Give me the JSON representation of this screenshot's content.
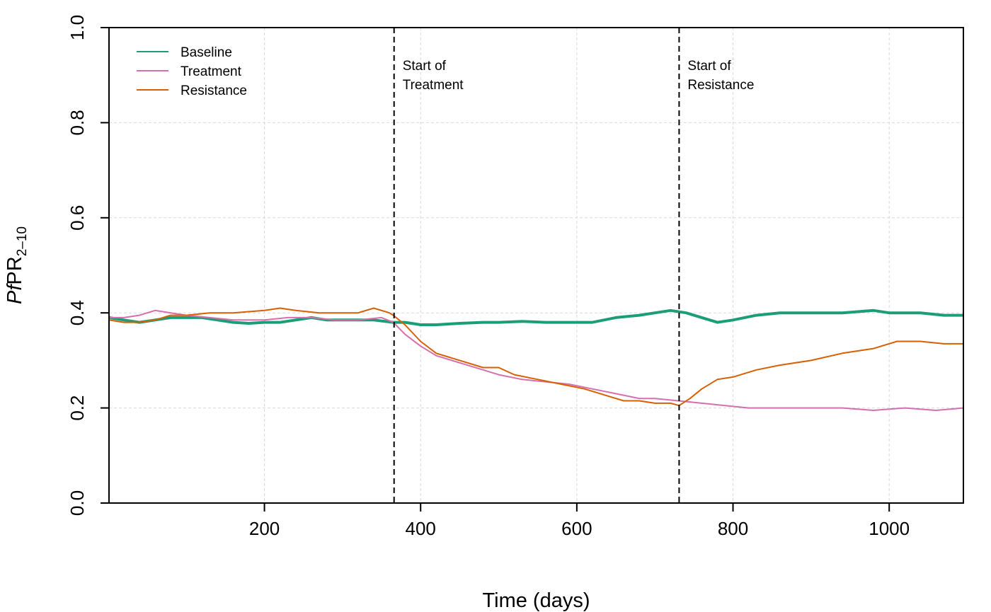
{
  "chart_data": {
    "type": "line",
    "title": "",
    "xlabel": "Time (days)",
    "ylabel": {
      "italic": "Pf",
      "main": "PR",
      "sub": "2–10"
    },
    "xlim": [
      1,
      1095
    ],
    "ylim": [
      0,
      1
    ],
    "xticks": [
      200,
      400,
      600,
      800,
      1000
    ],
    "xtick_labels": [
      "200",
      "400",
      "600",
      "800",
      "1000"
    ],
    "yticks": [
      0.0,
      0.2,
      0.4,
      0.6,
      0.8,
      1.0
    ],
    "ytick_labels": [
      "0.0",
      "0.2",
      "0.4",
      "0.6",
      "0.8",
      "1.0"
    ],
    "grid": true,
    "legend_position": "top-left",
    "series": [
      {
        "name": "Baseline",
        "color": "#1b9e77",
        "x": [
          1,
          20,
          40,
          60,
          80,
          100,
          120,
          140,
          160,
          180,
          200,
          220,
          240,
          260,
          280,
          300,
          320,
          340,
          365,
          380,
          400,
          420,
          450,
          480,
          500,
          530,
          560,
          590,
          620,
          650,
          680,
          700,
          720,
          740,
          760,
          780,
          800,
          830,
          860,
          900,
          940,
          980,
          1000,
          1040,
          1070,
          1095
        ],
        "values": [
          0.39,
          0.385,
          0.38,
          0.385,
          0.39,
          0.39,
          0.39,
          0.385,
          0.38,
          0.378,
          0.38,
          0.38,
          0.385,
          0.39,
          0.385,
          0.385,
          0.385,
          0.385,
          0.38,
          0.38,
          0.375,
          0.375,
          0.378,
          0.38,
          0.38,
          0.382,
          0.38,
          0.38,
          0.38,
          0.39,
          0.395,
          0.4,
          0.405,
          0.4,
          0.39,
          0.38,
          0.385,
          0.395,
          0.4,
          0.4,
          0.4,
          0.405,
          0.4,
          0.4,
          0.395,
          0.395
        ]
      },
      {
        "name": "Treatment",
        "color": "#d66fac",
        "x": [
          1,
          20,
          40,
          60,
          80,
          100,
          130,
          160,
          200,
          230,
          260,
          290,
          320,
          350,
          365,
          380,
          400,
          420,
          450,
          480,
          500,
          530,
          560,
          590,
          620,
          650,
          680,
          700,
          730,
          760,
          790,
          820,
          860,
          900,
          940,
          980,
          1020,
          1060,
          1095
        ],
        "values": [
          0.39,
          0.39,
          0.395,
          0.405,
          0.4,
          0.395,
          0.39,
          0.385,
          0.385,
          0.39,
          0.39,
          0.385,
          0.385,
          0.39,
          0.38,
          0.355,
          0.33,
          0.31,
          0.295,
          0.28,
          0.27,
          0.26,
          0.255,
          0.25,
          0.24,
          0.23,
          0.22,
          0.22,
          0.215,
          0.21,
          0.205,
          0.2,
          0.2,
          0.2,
          0.2,
          0.195,
          0.2,
          0.195,
          0.2
        ]
      },
      {
        "name": "Resistance",
        "color": "#d95f02",
        "x": [
          1,
          20,
          40,
          60,
          80,
          100,
          130,
          160,
          200,
          220,
          240,
          270,
          300,
          320,
          340,
          360,
          365,
          380,
          400,
          420,
          450,
          480,
          500,
          520,
          550,
          580,
          610,
          640,
          660,
          680,
          700,
          720,
          731,
          745,
          760,
          780,
          800,
          830,
          860,
          900,
          940,
          980,
          1010,
          1040,
          1070,
          1095
        ],
        "values": [
          0.385,
          0.38,
          0.38,
          0.385,
          0.395,
          0.395,
          0.4,
          0.4,
          0.405,
          0.41,
          0.405,
          0.4,
          0.4,
          0.4,
          0.41,
          0.4,
          0.395,
          0.375,
          0.34,
          0.315,
          0.3,
          0.285,
          0.285,
          0.27,
          0.26,
          0.25,
          0.24,
          0.225,
          0.215,
          0.215,
          0.21,
          0.21,
          0.205,
          0.22,
          0.24,
          0.26,
          0.265,
          0.28,
          0.29,
          0.3,
          0.315,
          0.325,
          0.34,
          0.34,
          0.335,
          0.335
        ]
      }
    ],
    "vlines": [
      {
        "x": 366,
        "label_line1": "Start of",
        "label_line2": "Treatment"
      },
      {
        "x": 731,
        "label_line1": "Start of",
        "label_line2": "Resistance"
      }
    ]
  }
}
